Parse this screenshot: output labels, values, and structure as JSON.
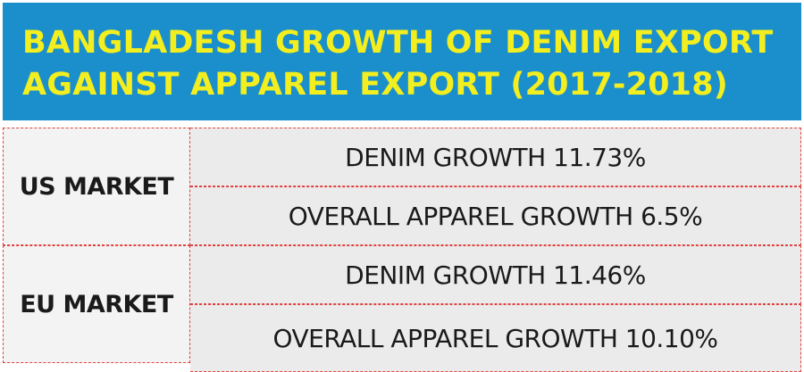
{
  "header": {
    "title_line1": "BANGLADESH GROWTH OF DENIM EXPORT",
    "title_line2": "AGAINST APPAREL EXPORT (2017-2018)"
  },
  "markets": [
    {
      "label": "US MARKET",
      "stats": [
        "DENIM GROWTH 11.73%",
        "OVERALL APPAREL GROWTH 6.5%"
      ]
    },
    {
      "label": "EU MARKET",
      "stats": [
        "DENIM GROWTH 11.46%",
        "OVERALL APPAREL GROWTH 10.10%"
      ]
    }
  ],
  "colors": {
    "header_background": "#1a8fcb",
    "header_text": "#f2ee1f",
    "border": "#e0413f",
    "cell_background": "#ebebeb"
  }
}
